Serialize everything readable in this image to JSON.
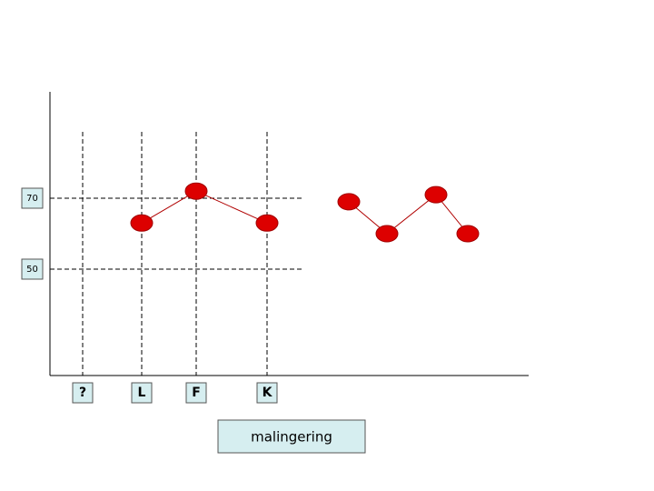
{
  "chart_data": {
    "type": "line",
    "categories": [
      "?",
      "L",
      "F",
      "K",
      null,
      null,
      null,
      null
    ],
    "series": [
      {
        "color": "#dd0000",
        "values": [
          null,
          63,
          72,
          63,
          null,
          null,
          null,
          null
        ]
      },
      {
        "color": "#dd0000",
        "values": [
          null,
          null,
          null,
          null,
          69,
          60,
          71,
          60
        ]
      }
    ],
    "ylim": [
      20,
      100
    ],
    "yticks": [
      50,
      70
    ],
    "grid": true,
    "annotation": "malingering"
  }
}
